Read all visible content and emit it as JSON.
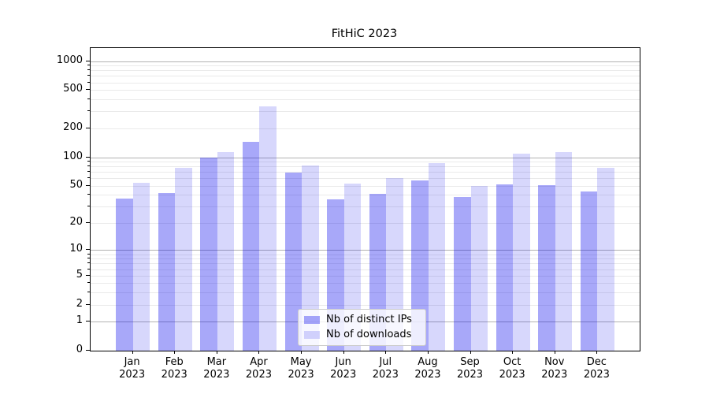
{
  "chart_data": {
    "type": "bar",
    "title": "FitHiC 2023",
    "categories": [
      "Jan 2023",
      "Feb 2023",
      "Mar 2023",
      "Apr 2023",
      "May 2023",
      "Jun 2023",
      "Jul 2023",
      "Aug 2023",
      "Sep 2023",
      "Oct 2023",
      "Nov 2023",
      "Dec 2023"
    ],
    "series": [
      {
        "name": "Nb of distinct IPs",
        "color": "#a8a8fa",
        "fill": "rgba(0,0,238,0.34)",
        "values": [
          37,
          42,
          100,
          145,
          69,
          36,
          41,
          57,
          38,
          52,
          51,
          44
        ]
      },
      {
        "name": "Nb of downloads",
        "color": "#d8d8fb",
        "fill": "rgba(0,0,238,0.155)",
        "values": [
          54,
          78,
          114,
          338,
          82,
          53,
          60,
          86,
          50,
          110,
          113,
          78
        ]
      }
    ],
    "xlabel": "",
    "ylabel": "",
    "y_ticks": [
      0,
      1,
      2,
      5,
      10,
      20,
      50,
      100,
      200,
      500,
      1000
    ],
    "y_scale": "log1p",
    "ylim": [
      0,
      1360
    ],
    "grid": "both",
    "legend_position": "lower center"
  },
  "colors": {
    "background": "#ffffff",
    "major_grid": "#b2b2b2",
    "minor_grid": "#eaeaea",
    "spine": "#000000",
    "legend_border": "#cccccc"
  }
}
